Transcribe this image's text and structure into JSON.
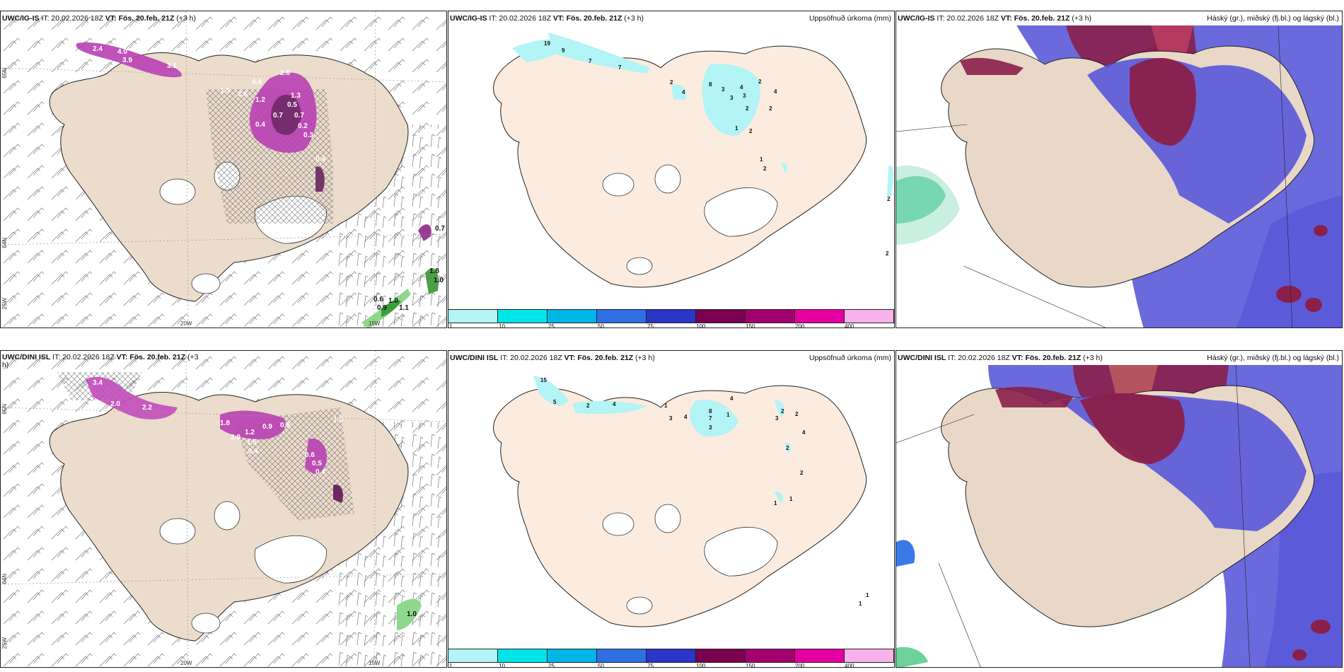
{
  "panels": {
    "p1": {
      "model": "UWC/IG-IS",
      "it": "IT: 20.02.2026 18Z",
      "vt": "VT: Fös. 20.feb. 21Z",
      "lead": "(+3 h)",
      "right": ""
    },
    "p2": {
      "model": "UWC/IG-IS",
      "it": "IT: 20.02.2026 18Z",
      "vt": "VT: Fös. 20.feb. 21Z",
      "lead": "(+3 h)",
      "right": "Uppsöfnuð úrkoma (mm)"
    },
    "p3": {
      "model": "UWC/IG-IS",
      "it": "IT: 20.02.2026 18Z",
      "vt": "VT: Fös. 20.feb. 21Z",
      "lead": "(+3 h)",
      "right": "Háský (gr.), miðský (fj.bl.) og lágský (bl.)"
    },
    "p4": {
      "model": "UWC/DINI ISL",
      "it": "IT: 20.02.2026 18Z",
      "vt": "VT: Fös. 20.feb. 21Z",
      "lead": "(+3 h)",
      "right": ""
    },
    "p5": {
      "model": "UWC/DINI ISL",
      "it": "IT: 20.02.2026 18Z",
      "vt": "VT: Fös. 20.feb. 21Z",
      "lead": "(+3 h)",
      "right": "Uppsöfnuð úrkoma (mm)"
    },
    "p6": {
      "model": "UWC/DINI ISL",
      "it": "IT: 20.02.2026 18Z",
      "vt": "VT: Fös. 20.feb. 21Z",
      "lead": "(+3 h)",
      "right": "Háský (gr.), miðský (fj.bl.) og lágský (bl.)"
    }
  },
  "axes": {
    "lon_20": "20W",
    "lon_15": "15W",
    "lat_65": "65N",
    "lat_64": "64N",
    "lon_25": "25W"
  },
  "legend": {
    "ticks": [
      "1",
      "10",
      "25",
      "50",
      "75",
      "100",
      "150",
      "200",
      "400"
    ],
    "colors": [
      "#b3f4f6",
      "#00e5e8",
      "#00b6e6",
      "#2f6fe4",
      "#2b35c6",
      "#7a0050",
      "#a3006f",
      "#e400a0",
      "#f7b2ea"
    ]
  },
  "labels": {
    "p1": [
      "2.4",
      "4.0",
      "3.9",
      "3.1",
      "4.4",
      "2.6",
      "1.5",
      "2.6",
      "1.2",
      "1.3",
      "0.5",
      "0.7",
      "0.7",
      "0.4",
      "0.2",
      "0.3",
      "0.4",
      "0.6",
      "0.9",
      "1.0",
      "1.1",
      "1.8",
      "1.0",
      "0.7"
    ],
    "p2": [
      "19",
      "9",
      "7",
      "7",
      "2",
      "4",
      "8",
      "3",
      "3",
      "4",
      "3",
      "2",
      "2",
      "4",
      "2",
      "1",
      "2",
      "1",
      "2",
      "2",
      "2"
    ],
    "p4": [
      "3.4",
      "2.0",
      "2.2",
      "1.8",
      "1.2",
      "0.9",
      "2.0",
      "1.5",
      "0.4",
      "0.9",
      "0.6",
      "0.5",
      "0.4",
      "1.0",
      "3.4",
      "1.0"
    ],
    "p5": [
      "15",
      "5",
      "2",
      "4",
      "1",
      "3",
      "4",
      "8",
      "7",
      "3",
      "4",
      "1",
      "2",
      "3",
      "2",
      "4",
      "2",
      "2",
      "1",
      "1",
      "1",
      "1"
    ]
  }
}
